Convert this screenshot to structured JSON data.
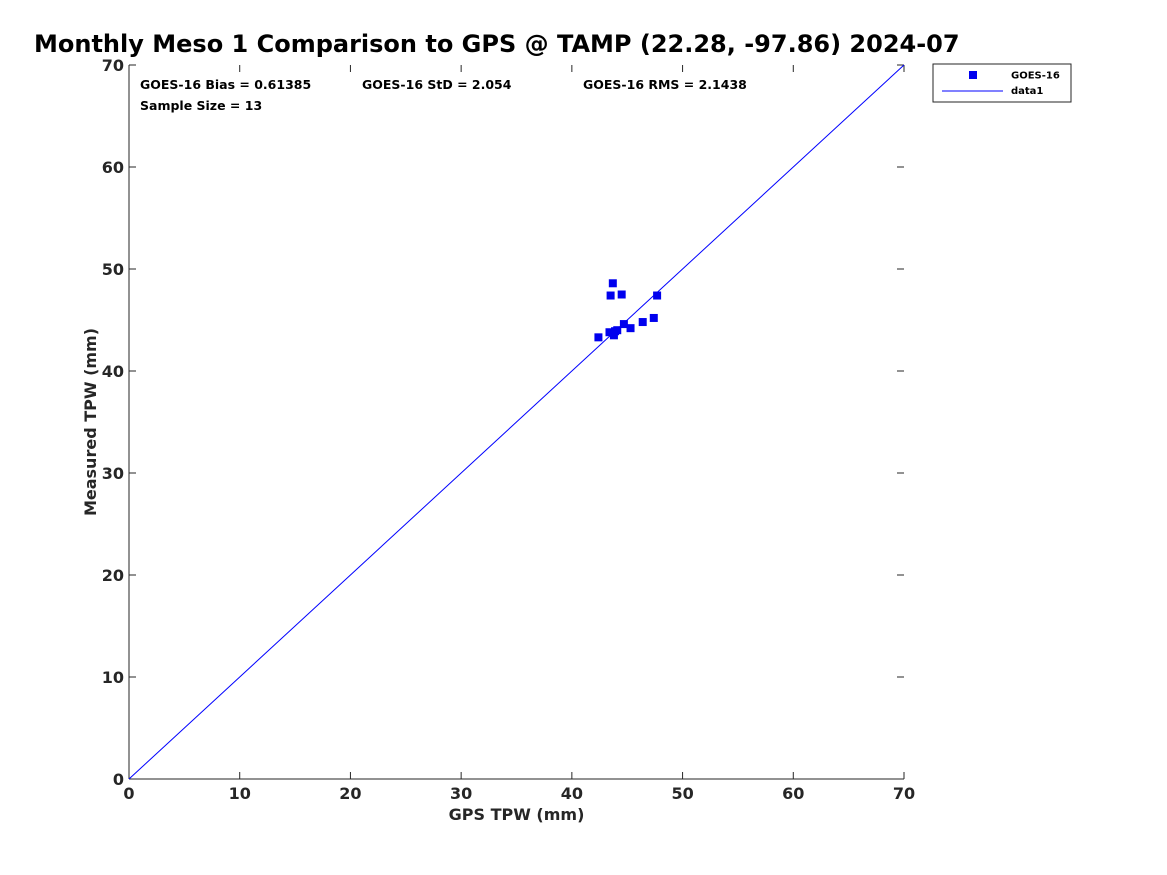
{
  "chart_data": {
    "type": "scatter",
    "title": "Monthly Meso 1 Comparison to GPS @ TAMP (22.28, -97.86) 2024-07",
    "xlabel": "GPS TPW (mm)",
    "ylabel": "Measured TPW (mm)",
    "xlim": [
      0,
      70
    ],
    "ylim": [
      0,
      70
    ],
    "xticks": [
      0,
      10,
      20,
      30,
      40,
      50,
      60,
      70
    ],
    "yticks": [
      0,
      10,
      20,
      30,
      40,
      50,
      60,
      70
    ],
    "grid": false,
    "legend_position": "outside-top-right",
    "series": [
      {
        "name": "GOES-16",
        "kind": "scatter",
        "color": "#0000ee",
        "marker": "square",
        "x": [
          42.4,
          43.4,
          43.8,
          44.1,
          44.7,
          45.3,
          46.4,
          47.4,
          43.5,
          44.5,
          43.7,
          47.7,
          43.9
        ],
        "y": [
          43.3,
          43.8,
          43.5,
          44.0,
          44.6,
          44.2,
          44.8,
          45.2,
          47.4,
          47.5,
          48.6,
          47.4,
          43.9
        ]
      },
      {
        "name": "data1",
        "kind": "line",
        "color": "#0000ff",
        "x": [
          0,
          70
        ],
        "y": [
          0,
          70
        ]
      }
    ],
    "annotations": {
      "bias": "GOES-16 Bias = 0.61385",
      "std": "GOES-16 StD = 2.054",
      "rms": "GOES-16 RMS = 2.1438",
      "sample_size": "Sample Size = 13"
    }
  }
}
